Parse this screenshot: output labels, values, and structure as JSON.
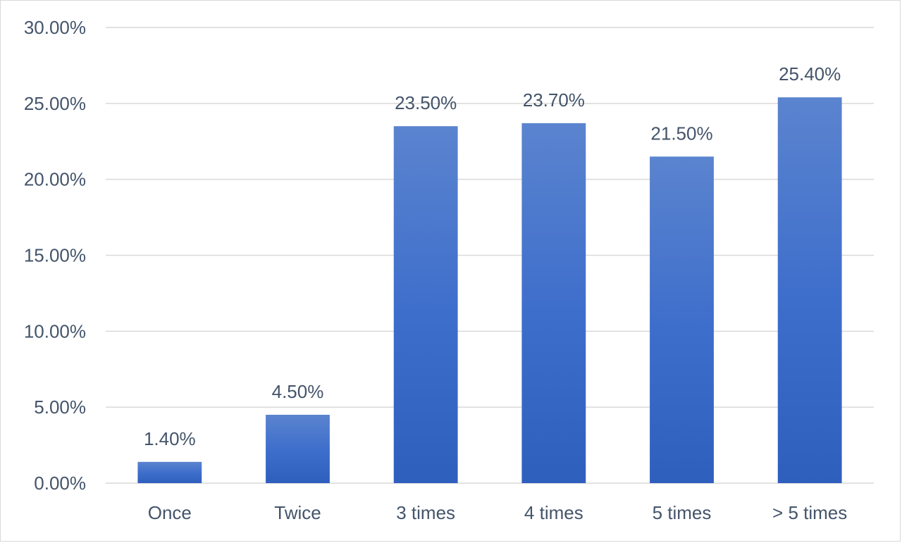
{
  "chart_data": {
    "type": "bar",
    "title": "",
    "xlabel": "",
    "ylabel": "",
    "categories": [
      "Once",
      "Twice",
      "3 times",
      "4 times",
      "5 times",
      "> 5 times"
    ],
    "values": [
      1.4,
      4.5,
      23.5,
      23.7,
      21.5,
      25.4
    ],
    "value_labels": [
      "1.40%",
      "4.50%",
      "23.50%",
      "23.70%",
      "21.50%",
      "25.40%"
    ],
    "ylim": [
      0,
      30
    ],
    "yticks": [
      0,
      5,
      10,
      15,
      20,
      25,
      30
    ],
    "ytick_labels": [
      "0.00%",
      "5.00%",
      "10.00%",
      "15.00%",
      "20.00%",
      "25.00%",
      "30.00%"
    ],
    "grid": true,
    "legend": "none",
    "bar_color_top": "#5b84cf",
    "bar_color_bottom": "#2f5fbd",
    "text_color": "#44546a",
    "grid_color": "#d9d9d9"
  }
}
